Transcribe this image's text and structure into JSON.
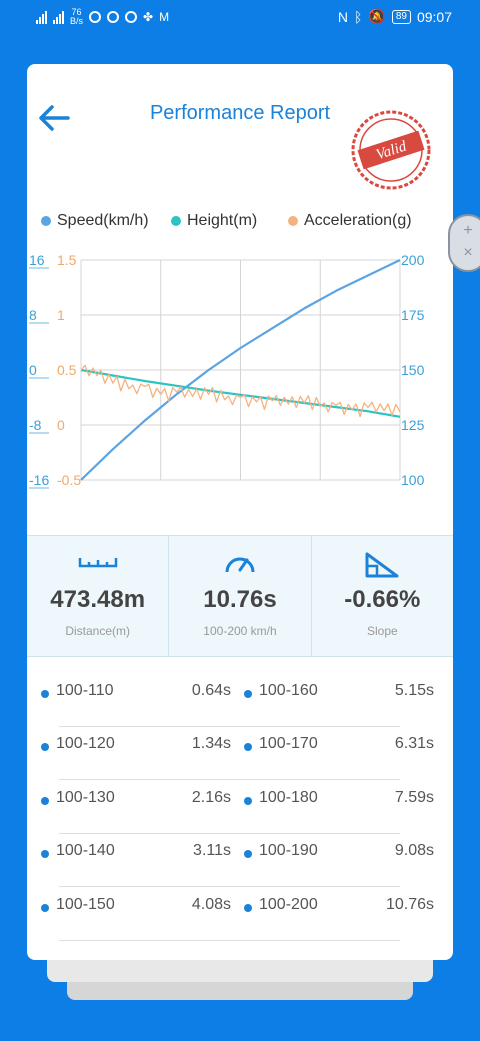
{
  "status": {
    "net_speed_value": "76",
    "net_speed_unit": "B/s",
    "battery": "89",
    "time": "09:07"
  },
  "header": {
    "title": "Performance Report",
    "stamp_text": "Valid"
  },
  "legend": [
    {
      "label": "Speed(km/h)",
      "color": "#5aa4e3"
    },
    {
      "label": "Height(m)",
      "color": "#2cc3c3"
    },
    {
      "label": "Acceleration(g)",
      "color": "#f5b27e"
    }
  ],
  "float_button": {
    "plus": "+",
    "close": "×"
  },
  "chart_data": {
    "type": "line",
    "axes": {
      "height_ticks": [
        "16",
        "8",
        "0",
        "-8",
        "-16"
      ],
      "accel_ticks": [
        "1.5",
        "1",
        "0.5",
        "0",
        "-0.5"
      ],
      "speed_ticks": [
        "200",
        "175",
        "150",
        "125",
        "100"
      ],
      "height_range": [
        -16,
        16
      ],
      "accel_range": [
        -0.5,
        1.5
      ],
      "speed_range": [
        100,
        200
      ]
    },
    "grid": true,
    "series": [
      {
        "name": "Speed(km/h)",
        "axis": "right",
        "color": "#5aa4e3",
        "x": [
          0,
          0.1,
          0.2,
          0.3,
          0.4,
          0.5,
          0.6,
          0.7,
          0.8,
          0.9,
          1.0
        ],
        "y": [
          100,
          114,
          127,
          139,
          150,
          160,
          169,
          178,
          186,
          193,
          200
        ]
      },
      {
        "name": "Height(m)",
        "axis": "left",
        "color": "#2cc3c3",
        "x": [
          0,
          0.1,
          0.2,
          0.3,
          0.4,
          0.5,
          0.6,
          0.7,
          0.8,
          0.9,
          1.0
        ],
        "y": [
          0,
          -0.8,
          -1.6,
          -2.3,
          -3.0,
          -3.6,
          -4.2,
          -4.8,
          -5.4,
          -6.0,
          -6.8
        ]
      },
      {
        "name": "Acceleration(g)",
        "axis": "left2",
        "color": "#f5b27e",
        "x": [
          0,
          0.05,
          0.1,
          0.15,
          0.2,
          0.25,
          0.3,
          0.35,
          0.4,
          0.45,
          0.5,
          0.55,
          0.6,
          0.65,
          0.7,
          0.75,
          0.8,
          0.85,
          0.9,
          0.95,
          1.0
        ],
        "y": [
          0.5,
          0.45,
          0.38,
          0.33,
          0.35,
          0.28,
          0.3,
          0.26,
          0.28,
          0.23,
          0.25,
          0.21,
          0.22,
          0.19,
          0.2,
          0.17,
          0.18,
          0.14,
          0.16,
          0.13,
          0.12
        ]
      }
    ]
  },
  "stats": [
    {
      "value": "473.48m",
      "label": "Distance(m)",
      "icon": "ruler-icon"
    },
    {
      "value": "10.76s",
      "label": "100-200 km/h",
      "icon": "speedometer-icon"
    },
    {
      "value": "-0.66%",
      "label": "Slope",
      "icon": "slope-icon"
    }
  ],
  "splits": [
    [
      {
        "range": "100-110",
        "time": "0.64s"
      },
      {
        "range": "100-160",
        "time": "5.15s"
      }
    ],
    [
      {
        "range": "100-120",
        "time": "1.34s"
      },
      {
        "range": "100-170",
        "time": "6.31s"
      }
    ],
    [
      {
        "range": "100-130",
        "time": "2.16s"
      },
      {
        "range": "100-180",
        "time": "7.59s"
      }
    ],
    [
      {
        "range": "100-140",
        "time": "3.11s"
      },
      {
        "range": "100-190",
        "time": "9.08s"
      }
    ],
    [
      {
        "range": "100-150",
        "time": "4.08s"
      },
      {
        "range": "100-200",
        "time": "10.76s"
      }
    ]
  ]
}
